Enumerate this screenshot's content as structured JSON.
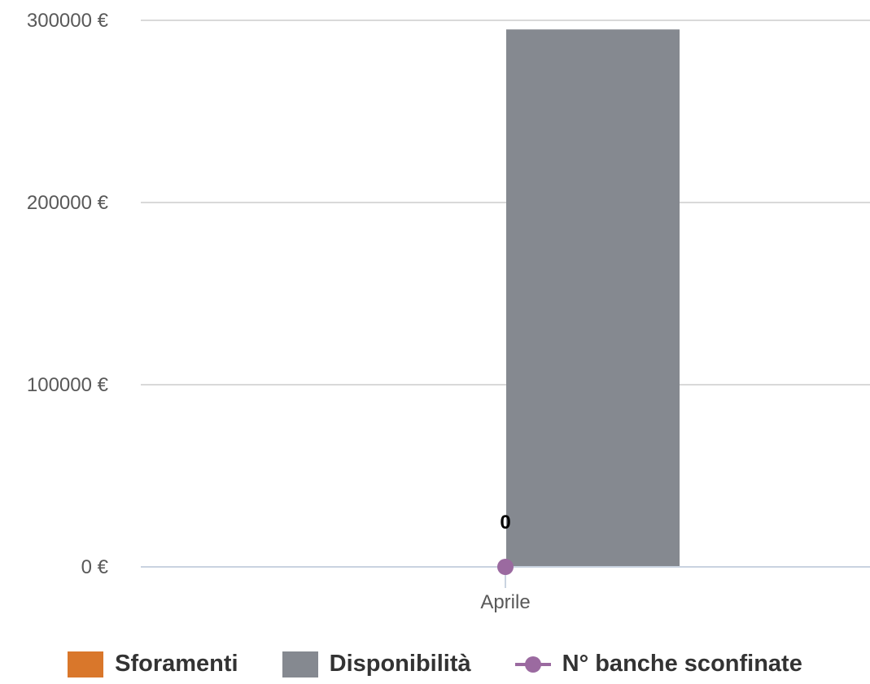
{
  "chart_data": {
    "type": "bar",
    "categories": [
      "Aprile"
    ],
    "series": [
      {
        "name": "Sforamenti",
        "type": "bar",
        "values": [
          0
        ],
        "color": "#d9772b"
      },
      {
        "name": "Disponibilità",
        "type": "bar",
        "values": [
          295000
        ],
        "color": "#858990"
      },
      {
        "name": "N° banche sconfinate",
        "type": "line",
        "values": [
          0
        ],
        "color": "#9b6aa0",
        "data_labels": [
          "0"
        ]
      }
    ],
    "y_ticks": [
      "0 €",
      "100000 €",
      "200000 €",
      "300000 €"
    ],
    "y_tick_values": [
      0,
      100000,
      200000,
      300000
    ],
    "ylim": [
      0,
      300000
    ],
    "grid": true,
    "legend_position": "bottom"
  },
  "legend": {
    "items": [
      {
        "label": "Sforamenti",
        "color": "#d9772b",
        "symbol": "square"
      },
      {
        "label": "Disponibilità",
        "color": "#858990",
        "symbol": "square"
      },
      {
        "label": "N° banche sconfinate",
        "color": "#9b6aa0",
        "symbol": "line-marker"
      }
    ]
  }
}
